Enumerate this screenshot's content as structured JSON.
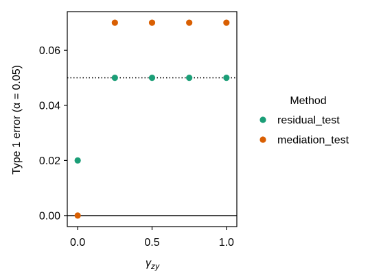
{
  "chart_data": {
    "type": "scatter",
    "title": "",
    "xlabel": "γ_zy",
    "xlabel_main": "γ",
    "xlabel_sub": "zy",
    "ylabel": "Type 1 error (α = 0.05)",
    "xlim": [
      -0.07,
      1.07
    ],
    "ylim": [
      -0.004,
      0.074
    ],
    "x_ticks": [
      0.0,
      0.5,
      1.0
    ],
    "x_tick_labels": [
      "0.0",
      "0.5",
      "1.0"
    ],
    "y_ticks": [
      0.0,
      0.02,
      0.04,
      0.06
    ],
    "y_tick_labels": [
      "0.00",
      "0.02",
      "0.04",
      "0.06"
    ],
    "grid": false,
    "reference_lines": [
      {
        "y": 0.05,
        "style": "dotted",
        "color": "#000000"
      },
      {
        "y": 0.0,
        "style": "solid",
        "color": "#000000"
      }
    ],
    "legend": {
      "title": "Method",
      "placement": "right, outside"
    },
    "series": [
      {
        "name": "residual_test",
        "color": "#1b9e77",
        "x": [
          0.0,
          0.25,
          0.5,
          0.75,
          1.0
        ],
        "y": [
          0.02,
          0.05,
          0.05,
          0.05,
          0.05
        ]
      },
      {
        "name": "mediation_test",
        "color": "#d95f02",
        "x": [
          0.0,
          0.25,
          0.5,
          0.75,
          1.0
        ],
        "y": [
          0.0,
          0.07,
          0.07,
          0.07,
          0.07
        ]
      }
    ]
  }
}
